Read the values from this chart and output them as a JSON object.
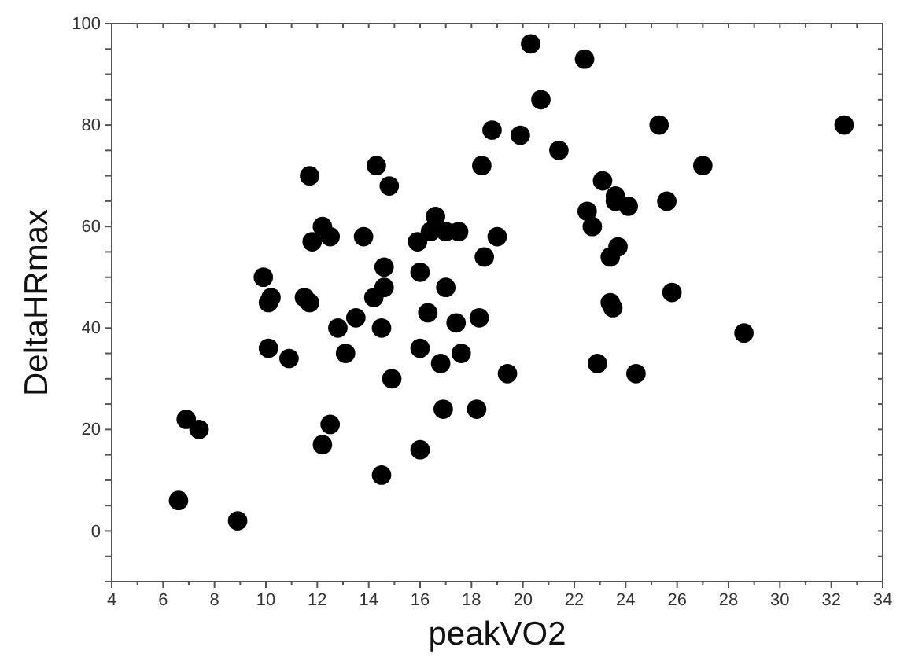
{
  "chart_data": {
    "type": "scatter",
    "xlabel": "peakVO2",
    "ylabel": "DeltaHRmax",
    "xlim": [
      4,
      34
    ],
    "ylim": [
      -10,
      100
    ],
    "xticks": [
      4,
      {
        "value": 5,
        "label": null
      },
      6,
      {
        "value": 7,
        "label": null
      },
      8,
      {
        "value": 9,
        "label": null
      },
      10,
      {
        "value": 11,
        "label": null
      },
      12,
      {
        "value": 13,
        "label": null
      },
      14,
      {
        "value": 15,
        "label": null
      },
      16,
      {
        "value": 17,
        "label": null
      },
      18,
      {
        "value": 19,
        "label": null
      },
      20,
      {
        "value": 21,
        "label": null
      },
      22,
      {
        "value": 23,
        "label": null
      },
      24,
      {
        "value": 25,
        "label": null
      },
      26,
      {
        "value": 27,
        "label": null
      },
      28,
      {
        "value": 29,
        "label": null
      },
      30,
      {
        "value": 31,
        "label": null
      },
      32,
      {
        "value": 33,
        "label": null
      },
      34
    ],
    "yticks": [
      {
        "value": -10,
        "label": null
      },
      {
        "value": -5,
        "label": null
      },
      0,
      {
        "value": 5,
        "label": null
      },
      {
        "value": 10,
        "label": null
      },
      {
        "value": 15,
        "label": null
      },
      20,
      {
        "value": 25,
        "label": null
      },
      {
        "value": 30,
        "label": null
      },
      {
        "value": 35,
        "label": null
      },
      40,
      {
        "value": 45,
        "label": null
      },
      {
        "value": 50,
        "label": null
      },
      {
        "value": 55,
        "label": null
      },
      60,
      {
        "value": 65,
        "label": null
      },
      {
        "value": 70,
        "label": null
      },
      {
        "value": 75,
        "label": null
      },
      80,
      {
        "value": 85,
        "label": null
      },
      {
        "value": 90,
        "label": null
      },
      {
        "value": 95,
        "label": null
      },
      100
    ],
    "grid": false,
    "marker": "circle",
    "series": [
      {
        "color": "#000000",
        "x": [
          6.6,
          6.9,
          7.4,
          8.9,
          9.9,
          10.2,
          10.1,
          10.1,
          10.9,
          11.5,
          11.7,
          11.7,
          11.8,
          12.2,
          12.5,
          12.2,
          12.5,
          12.8,
          13.1,
          13.5,
          13.8,
          14.2,
          14.3,
          14.5,
          14.6,
          14.6,
          14.5,
          14.8,
          14.9,
          15.9,
          16.0,
          16.0,
          16.0,
          16.3,
          16.4,
          16.6,
          16.8,
          16.9,
          17.0,
          17.0,
          17.4,
          17.5,
          17.6,
          18.3,
          18.2,
          18.4,
          18.5,
          18.8,
          19.0,
          19.4,
          19.9,
          20.3,
          20.7,
          21.4,
          22.4,
          22.5,
          22.7,
          22.9,
          23.1,
          23.4,
          23.4,
          23.5,
          23.6,
          23.6,
          23.7,
          24.1,
          24.4,
          25.3,
          25.6,
          25.8,
          27.0,
          28.6,
          32.5
        ],
        "values": [
          6,
          22,
          20,
          2,
          50,
          46,
          45,
          36,
          34,
          46,
          45,
          70,
          57,
          60,
          58,
          17,
          21,
          40,
          35,
          42,
          58,
          46,
          72,
          40,
          48,
          52,
          11,
          68,
          30,
          57,
          51,
          36,
          16,
          43,
          59,
          62,
          33,
          24,
          48,
          59,
          41,
          59,
          35,
          42,
          24,
          72,
          54,
          79,
          58,
          31,
          78,
          96,
          85,
          75,
          93,
          63,
          60,
          33,
          69,
          54,
          45,
          44,
          66,
          65,
          56,
          64,
          31,
          80,
          65,
          47,
          72,
          39,
          80
        ]
      }
    ]
  }
}
